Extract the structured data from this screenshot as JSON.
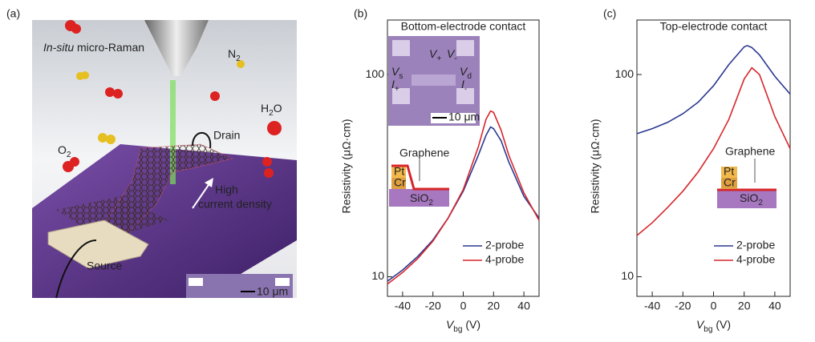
{
  "illustration": {
    "panel_label": "(a)",
    "raman_label": [
      "In-situ",
      " micro-Raman"
    ],
    "n2": [
      "N",
      "2"
    ],
    "h2o": [
      "H",
      "2",
      "O"
    ],
    "o2": [
      "O",
      "2"
    ],
    "drain": "Drain",
    "arrow_label": [
      "High",
      "current density"
    ],
    "source": "Source",
    "scale": "10 μm"
  },
  "chart_data": [
    {
      "type": "line",
      "panel_label": "(b)",
      "title": "Bottom-electrode contact",
      "ylabel": "Resistivity (μΩ·cm)",
      "xlabel": [
        "V",
        "bg",
        " (V)"
      ],
      "xlim": [
        -50,
        50
      ],
      "ylim": [
        8,
        186
      ],
      "log_y": true,
      "xticks": [
        -40,
        -20,
        0,
        20,
        40
      ],
      "yticks": [
        10,
        100
      ],
      "legend": "lower right",
      "series": [
        {
          "name": "2-probe",
          "color": "#2b3990",
          "x": [
            -50,
            -40,
            -30,
            -20,
            -10,
            0,
            10,
            15,
            18,
            20,
            25,
            30,
            40,
            50
          ],
          "values": [
            9.5,
            10.8,
            12.6,
            15.2,
            19.5,
            26.5,
            40,
            50,
            55,
            54,
            47,
            37,
            25,
            19.5
          ]
        },
        {
          "name": "4-probe",
          "color": "#d7262b",
          "x": [
            -50,
            -40,
            -30,
            -20,
            -10,
            0,
            10,
            15,
            18,
            20,
            25,
            30,
            40,
            50
          ],
          "values": [
            9.2,
            10.5,
            12.3,
            15,
            19.5,
            27,
            44,
            60,
            66,
            65,
            53,
            40,
            26,
            19
          ]
        }
      ],
      "micrograph": {
        "vp": [
          "V",
          "+"
        ],
        "vm": [
          "V",
          "-"
        ],
        "vs": [
          "V",
          "s"
        ],
        "vd": [
          "V",
          "d"
        ],
        "ip": [
          "I",
          "+"
        ],
        "im": [
          "I",
          "-"
        ],
        "scale": "10 μm"
      },
      "schematic": {
        "graphene": "Graphene",
        "pt": "Pt",
        "cr": "Cr",
        "sio2": [
          "SiO",
          "2"
        ]
      }
    },
    {
      "type": "line",
      "panel_label": "(c)",
      "title": "Top-electrode contact",
      "ylabel": "Resistivity (μΩ·cm)",
      "xlabel": [
        "V",
        "bg",
        " (V)"
      ],
      "xlim": [
        -50,
        50
      ],
      "ylim": [
        8,
        186
      ],
      "log_y": true,
      "xticks": [
        -40,
        -20,
        0,
        20,
        40
      ],
      "yticks": [
        10,
        100
      ],
      "legend": "lower right",
      "series": [
        {
          "name": "2-probe",
          "color": "#2b3990",
          "x": [
            -50,
            -40,
            -30,
            -20,
            -10,
            0,
            10,
            20,
            22,
            25,
            30,
            40,
            50
          ],
          "values": [
            51,
            54,
            58,
            64,
            73,
            88,
            112,
            137,
            139,
            136,
            125,
            98,
            80
          ]
        },
        {
          "name": "4-probe",
          "color": "#d7262b",
          "x": [
            -50,
            -40,
            -30,
            -20,
            -10,
            0,
            10,
            20,
            25,
            30,
            40,
            50
          ],
          "values": [
            16,
            18.5,
            22,
            26.5,
            33,
            43,
            60,
            95,
            108,
            100,
            62,
            43
          ]
        }
      ],
      "schematic": {
        "graphene": "Graphene",
        "pt": "Pt",
        "cr": "Cr",
        "sio2": [
          "SiO",
          "2"
        ]
      }
    }
  ]
}
